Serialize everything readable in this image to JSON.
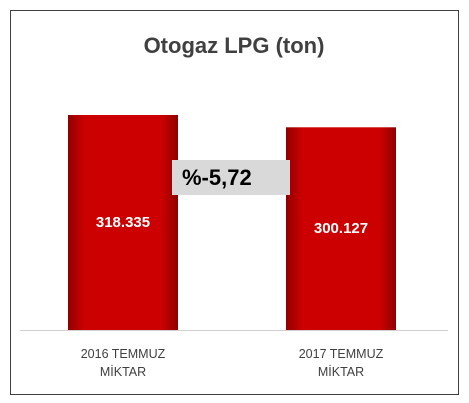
{
  "chart_data": {
    "type": "bar",
    "title": "Otogaz LPG (ton)",
    "categories": [
      "2016 TEMMUZ MİKTAR",
      "2017 TEMMUZ MİKTAR"
    ],
    "values": [
      318335,
      300127
    ],
    "value_labels": [
      "318.335",
      "300.127"
    ],
    "color": "#c00000",
    "annotation": "%-5,72"
  }
}
